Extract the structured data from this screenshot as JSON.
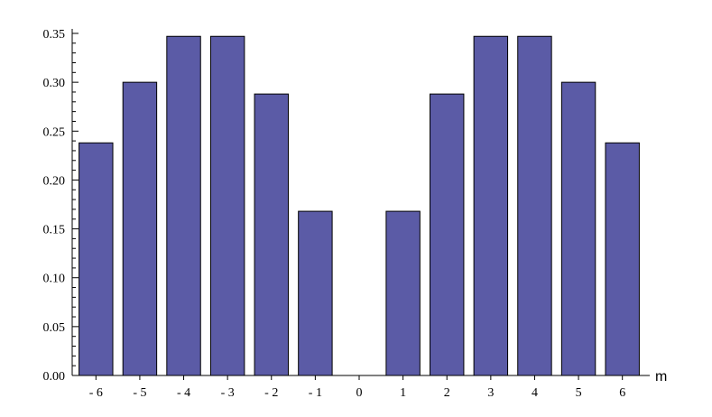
{
  "chart_data": {
    "type": "bar",
    "title": "",
    "xlabel": "m",
    "ylabel": "",
    "ylim": [
      0,
      0.35
    ],
    "categories": [
      "-6",
      "-5",
      "-4",
      "-3",
      "-2",
      "-1",
      "0",
      "1",
      "2",
      "3",
      "4",
      "5",
      "6"
    ],
    "values": [
      0.238,
      0.3,
      0.347,
      0.347,
      0.288,
      0.168,
      0,
      0.168,
      0.288,
      0.347,
      0.347,
      0.3,
      0.238
    ],
    "y_ticks": [
      "0.00",
      "0.05",
      "0.10",
      "0.15",
      "0.20",
      "0.25",
      "0.30",
      "0.35"
    ],
    "y_tick_values": [
      0,
      0.05,
      0.1,
      0.15,
      0.2,
      0.25,
      0.3,
      0.35
    ],
    "colors": {
      "bar": "#5b5ba6",
      "axis": "#000000"
    },
    "grid": false
  }
}
